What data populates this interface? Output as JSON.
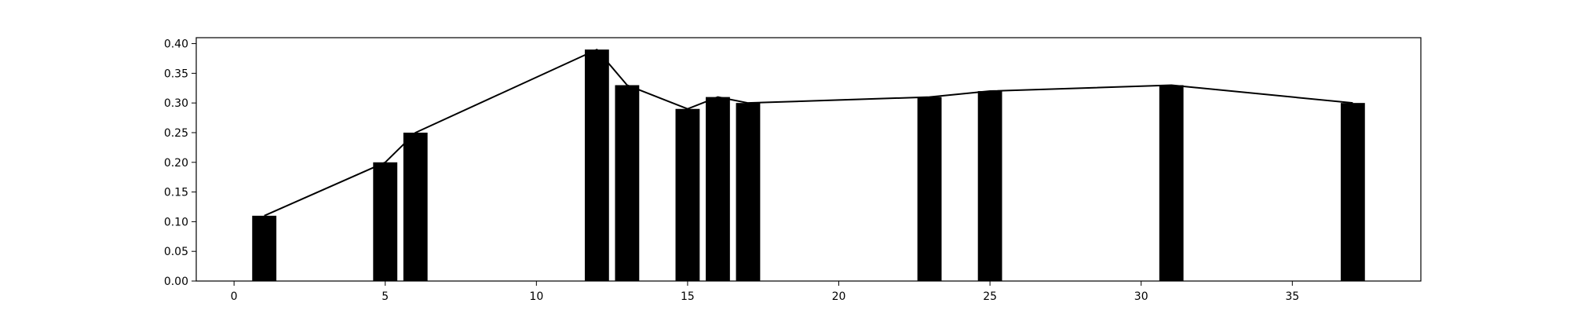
{
  "chart_data": {
    "type": "bar",
    "title": "",
    "xlabel": "",
    "ylabel": "",
    "xlim": [
      -1.25,
      39.25
    ],
    "ylim": [
      0.0,
      0.41
    ],
    "grid": false,
    "legend": "none",
    "xticks": [
      0,
      5,
      10,
      15,
      20,
      25,
      30,
      35
    ],
    "yticks": [
      0.0,
      0.05,
      0.1,
      0.15,
      0.2,
      0.25,
      0.3,
      0.35,
      0.4
    ],
    "bar_color": "#000000",
    "line_color": "#000000",
    "x": [
      1,
      5,
      6,
      12,
      13,
      15,
      16,
      17,
      23,
      25,
      31,
      37
    ],
    "series": [
      {
        "type": "bar",
        "values": [
          0.11,
          0.2,
          0.25,
          0.39,
          0.33,
          0.29,
          0.31,
          0.3,
          0.31,
          0.32,
          0.33,
          0.3
        ]
      },
      {
        "type": "line",
        "values": [
          0.11,
          0.2,
          0.25,
          0.39,
          0.33,
          0.29,
          0.31,
          0.3,
          0.31,
          0.32,
          0.33,
          0.3
        ]
      }
    ]
  }
}
